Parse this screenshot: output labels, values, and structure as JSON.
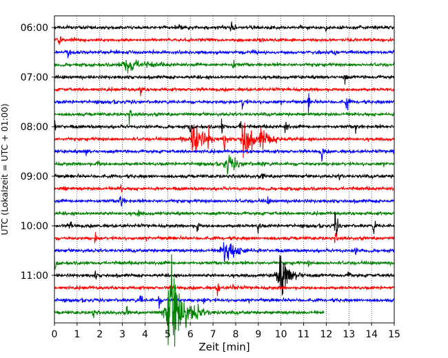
{
  "chart_data": {
    "type": "line",
    "title": "",
    "xlabel": "Zeit  [min]",
    "ylabel": "UTC (Lokalzeit = UTC + 01:00)",
    "xlim": [
      0,
      15
    ],
    "x_ticks": [
      "0",
      "1",
      "2",
      "3",
      "4",
      "5",
      "6",
      "7",
      "8",
      "9",
      "10",
      "11",
      "12",
      "13",
      "14",
      "15"
    ],
    "y_ticks": [
      "06:00",
      "07:00",
      "08:00",
      "09:00",
      "10:00",
      "11:00"
    ],
    "trace_interval_minutes": 15,
    "grid": "vertical dotted",
    "colors": [
      "#000000",
      "#ff0000",
      "#0000ff",
      "#008000"
    ],
    "series": [
      {
        "start": "06:00",
        "color": "#000000",
        "events": [
          {
            "t": 5.5,
            "a": 0.4
          },
          {
            "t": 7.8,
            "a": 0.7
          },
          {
            "t": 10.8,
            "a": 0.4
          },
          {
            "t": 12.0,
            "a": 0.5
          }
        ]
      },
      {
        "start": "06:15",
        "color": "#ff0000",
        "events": [
          {
            "t": 0.2,
            "a": 0.8
          },
          {
            "t": 9.1,
            "a": 0.3
          }
        ]
      },
      {
        "start": "06:30",
        "color": "#0000ff",
        "events": [
          {
            "t": 0.6,
            "a": 0.6
          },
          {
            "t": 8.8,
            "a": 0.3
          },
          {
            "t": 12.4,
            "a": 0.3
          }
        ]
      },
      {
        "start": "06:45",
        "color": "#008000",
        "events": [
          {
            "t": 3.3,
            "a": 0.8,
            "w": 0.5
          },
          {
            "t": 7.9,
            "a": 0.7
          }
        ]
      },
      {
        "start": "07:00",
        "color": "#000000",
        "events": [
          {
            "t": 12.8,
            "a": 0.9
          }
        ]
      },
      {
        "start": "07:15",
        "color": "#ff0000",
        "events": [
          {
            "t": 3.8,
            "a": 0.9
          }
        ]
      },
      {
        "start": "07:30",
        "color": "#0000ff",
        "events": [
          {
            "t": 8.3,
            "a": 0.9
          },
          {
            "t": 11.2,
            "a": 1.1
          },
          {
            "t": 12.9,
            "a": 1.2
          }
        ]
      },
      {
        "start": "07:45",
        "color": "#008000",
        "events": [
          {
            "t": 3.3,
            "a": 0.8
          }
        ]
      },
      {
        "start": "08:00",
        "color": "#000000",
        "events": [
          {
            "t": 0.0,
            "a": 1.0
          },
          {
            "t": 6.0,
            "a": 0.8
          },
          {
            "t": 7.4,
            "a": 0.8
          },
          {
            "t": 8.2,
            "a": 0.8
          },
          {
            "t": 10.2,
            "a": 1.0
          },
          {
            "t": 13.3,
            "a": 0.9
          }
        ]
      },
      {
        "start": "08:15",
        "color": "#ff0000",
        "events": [
          {
            "t": 5.6,
            "a": 0.5
          },
          {
            "t": 6.2,
            "a": 2.2,
            "w": 0.3
          },
          {
            "t": 6.8,
            "a": 1.0
          },
          {
            "t": 7.5,
            "a": 1.6
          },
          {
            "t": 8.4,
            "a": 2.3,
            "w": 0.25
          },
          {
            "t": 9.2,
            "a": 0.8,
            "w": 0.4
          }
        ]
      },
      {
        "start": "08:30",
        "color": "#0000ff",
        "events": [
          {
            "t": 1.4,
            "a": 0.5
          },
          {
            "t": 11.8,
            "a": 1.1
          },
          {
            "t": 15.0,
            "a": 0.9
          }
        ]
      },
      {
        "start": "08:45",
        "color": "#008000",
        "events": [
          {
            "t": 1.9,
            "a": 0.6
          },
          {
            "t": 7.7,
            "a": 0.9,
            "w": 0.3
          },
          {
            "t": 9.2,
            "a": 0.4
          }
        ]
      },
      {
        "start": "09:00",
        "color": "#000000",
        "events": [
          {
            "t": 9.2,
            "a": 0.6
          },
          {
            "t": 12.6,
            "a": 0.5
          }
        ]
      },
      {
        "start": "09:15",
        "color": "#ff0000",
        "events": [
          {
            "t": 0.4,
            "a": 0.5
          },
          {
            "t": 2.9,
            "a": 0.8
          }
        ]
      },
      {
        "start": "09:30",
        "color": "#0000ff",
        "events": [
          {
            "t": 2.9,
            "a": 2.0
          },
          {
            "t": 9.4,
            "a": 0.4
          }
        ]
      },
      {
        "start": "09:45",
        "color": "#008000",
        "events": [
          {
            "t": 3.7,
            "a": 0.7
          }
        ]
      },
      {
        "start": "10:00",
        "color": "#000000",
        "events": [
          {
            "t": 0.7,
            "a": 0.8
          },
          {
            "t": 6.3,
            "a": 0.8
          },
          {
            "t": 9.0,
            "a": 0.8
          },
          {
            "t": 12.4,
            "a": 2.4
          },
          {
            "t": 14.1,
            "a": 0.9
          }
        ]
      },
      {
        "start": "10:15",
        "color": "#ff0000",
        "events": [
          {
            "t": 1.8,
            "a": 0.5
          },
          {
            "t": 12.4,
            "a": 0.6
          }
        ]
      },
      {
        "start": "10:30",
        "color": "#0000ff",
        "events": [
          {
            "t": 7.6,
            "a": 1.5,
            "w": 0.35
          },
          {
            "t": 13.3,
            "a": 0.6
          }
        ]
      },
      {
        "start": "10:45",
        "color": "#008000",
        "events": [
          {
            "t": 0.0,
            "a": 1.3
          },
          {
            "t": 11.2,
            "a": 0.4
          }
        ]
      },
      {
        "start": "11:00",
        "color": "#000000",
        "events": [
          {
            "t": 1.8,
            "a": 0.5
          },
          {
            "t": 10.0,
            "a": 2.0,
            "w": 0.35
          },
          {
            "t": 13.0,
            "a": 0.4
          }
        ]
      },
      {
        "start": "11:15",
        "color": "#ff0000",
        "events": [
          {
            "t": 5.2,
            "a": 0.5
          },
          {
            "t": 7.2,
            "a": 1.0
          },
          {
            "t": 7.9,
            "a": 0.6
          }
        ]
      },
      {
        "start": "11:30",
        "color": "#0000ff",
        "events": [
          {
            "t": 3.8,
            "a": 0.8
          },
          {
            "t": 4.6,
            "a": 0.8
          },
          {
            "t": 5.3,
            "a": 0.9
          },
          {
            "t": 6.6,
            "a": 0.5
          }
        ]
      },
      {
        "start": "11:45",
        "color": "#008000",
        "end_minute": 11.9,
        "events": [
          {
            "t": 1.7,
            "a": 0.6
          },
          {
            "t": 3.2,
            "a": 0.6
          },
          {
            "t": 5.2,
            "a": 5.0,
            "w": 0.45
          },
          {
            "t": 6.3,
            "a": 0.8
          }
        ]
      }
    ]
  }
}
